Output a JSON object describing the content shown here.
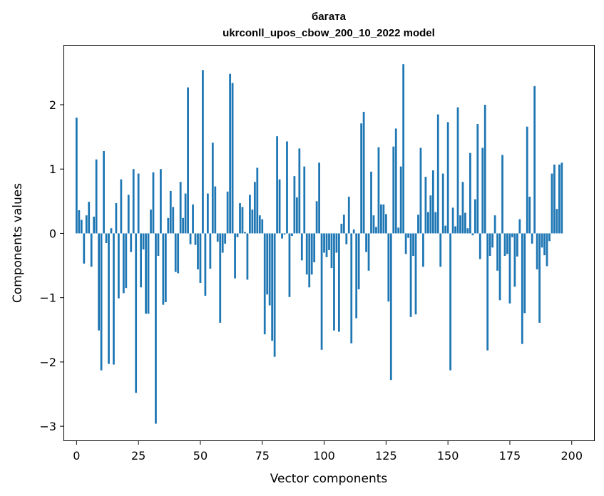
{
  "chart_data": {
    "type": "bar",
    "title_line1": "багата",
    "title_line2": "ukrconll_upos_cbow_200_10_2022 model",
    "xlabel": "Vector components",
    "ylabel": "Components values",
    "xlim": [
      -5,
      209
    ],
    "ylim": [
      -3.22,
      2.92
    ],
    "xticks": [
      0,
      25,
      50,
      75,
      100,
      125,
      150,
      175,
      200
    ],
    "yticks": [
      -3,
      -2,
      -1,
      0,
      1,
      2
    ],
    "ytick_labels": [
      "−3",
      "−2",
      "−1",
      "0",
      "1",
      "2"
    ],
    "bar_color": "#1f77b4",
    "values": [
      1.8,
      0.36,
      0.21,
      -0.47,
      0.28,
      0.49,
      -0.52,
      0.26,
      1.15,
      -1.51,
      -2.13,
      1.28,
      -0.15,
      -2.03,
      0.08,
      -2.04,
      0.47,
      -1.01,
      0.84,
      -0.93,
      -0.85,
      0.6,
      -0.29,
      1.0,
      -2.48,
      0.93,
      -0.84,
      -0.25,
      -1.25,
      -1.25,
      0.37,
      0.95,
      -2.96,
      -0.35,
      1.0,
      -1.11,
      -1.07,
      0.24,
      0.66,
      0.41,
      -0.6,
      -0.62,
      0.8,
      0.24,
      0.62,
      2.27,
      -0.17,
      0.45,
      -0.18,
      -0.56,
      -0.77,
      2.54,
      -0.97,
      0.62,
      -0.55,
      1.41,
      0.73,
      -0.13,
      -1.39,
      -0.3,
      -0.16,
      0.65,
      2.48,
      2.34,
      -0.7,
      -0.06,
      0.47,
      0.41,
      0.02,
      -0.72,
      0.6,
      0.37,
      0.8,
      1.02,
      0.28,
      0.22,
      -1.57,
      -0.95,
      -1.12,
      -1.67,
      -1.92,
      1.51,
      0.84,
      -0.08,
      -0.02,
      1.43,
      -0.99,
      -0.04,
      0.89,
      0.56,
      1.32,
      -0.42,
      1.04,
      -0.64,
      -0.84,
      -0.64,
      -0.45,
      0.5,
      1.1,
      -1.81,
      -0.3,
      -0.37,
      -0.26,
      -0.54,
      -1.51,
      -0.3,
      -1.53,
      0.15,
      0.29,
      -0.17,
      0.57,
      -1.71,
      0.06,
      -1.32,
      -0.87,
      1.71,
      1.89,
      -0.29,
      -0.58,
      0.96,
      0.28,
      0.1,
      1.34,
      0.45,
      0.45,
      0.3,
      -1.06,
      -2.28,
      1.35,
      1.63,
      0.09,
      1.04,
      2.63,
      -0.32,
      -0.07,
      -1.3,
      -0.35,
      -1.26,
      0.29,
      1.33,
      -0.52,
      0.88,
      0.33,
      0.59,
      0.98,
      0.33,
      1.85,
      -0.52,
      0.93,
      0.12,
      1.73,
      -2.13,
      0.4,
      0.11,
      1.96,
      0.28,
      0.8,
      0.32,
      0.08,
      1.25,
      -0.03,
      0.53,
      1.7,
      -0.4,
      1.33,
      2.0,
      -1.82,
      -0.35,
      -0.22,
      0.28,
      -0.58,
      -1.04,
      1.22,
      -0.35,
      -0.32,
      -1.09,
      -0.06,
      -0.83,
      -0.36,
      0.22,
      -1.72,
      -1.24,
      1.66,
      0.57,
      -0.16,
      2.29,
      -0.56,
      -1.39,
      -0.22,
      -0.34,
      -0.51,
      -0.12,
      0.93,
      1.07,
      0.38,
      1.07,
      1.1
    ]
  }
}
